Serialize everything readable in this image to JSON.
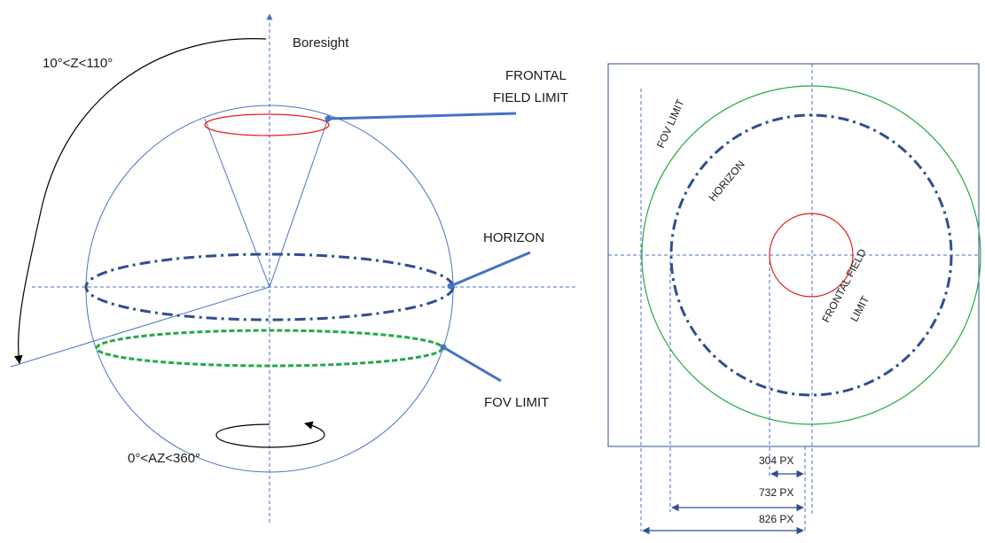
{
  "left_diagram": {
    "boresight": "Boresight",
    "zenith_range": "10°<Z<110°",
    "frontal_field_limit_line1": "FRONTAL",
    "frontal_field_limit_line2": "FIELD LIMIT",
    "horizon": "HORIZON",
    "fov_limit": "FOV LIMIT",
    "azimuth_range": "0°<AZ<360°"
  },
  "right_diagram": {
    "fov_limit": "FOV LIMIT",
    "horizon": "HORIZON",
    "frontal_field_limit_line1": "FRONTAL FIELD",
    "frontal_field_limit_line2": "LIMIT",
    "dim_304": "304 PX",
    "dim_732": "732 PX",
    "dim_826": "826 PX"
  },
  "colors": {
    "sphere": "#4a72c4",
    "guide": "#4a72c4",
    "horizon": "#2f4f8f",
    "frontal": "#e0201c",
    "fov": "#22aa44",
    "leader": "#4472c4",
    "arrow": "#000000"
  }
}
